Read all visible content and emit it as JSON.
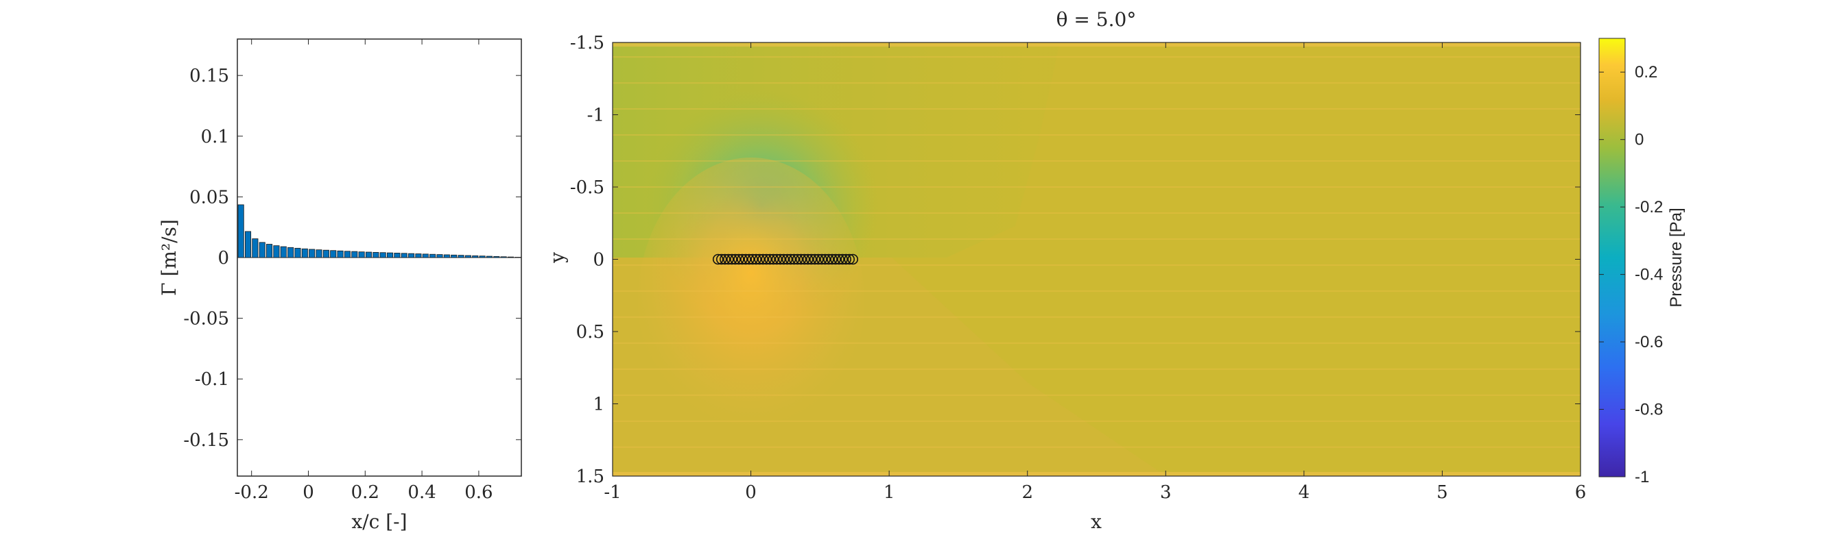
{
  "chart_data": [
    {
      "type": "bar",
      "xlabel": "x/c [-]",
      "ylabel": "Γ [m²/s]",
      "xlim": [
        -0.25,
        0.75
      ],
      "ylim": [
        -0.18,
        0.18
      ],
      "xticks": [
        "-0.2",
        "0",
        "0.2",
        "0.4",
        "0.6"
      ],
      "xtick_values": [
        -0.2,
        0,
        0.2,
        0.4,
        0.6
      ],
      "yticks": [
        "-0.15",
        "-0.1",
        "-0.05",
        "0",
        "0.05",
        "0.1",
        "0.15"
      ],
      "ytick_values": [
        -0.15,
        -0.1,
        -0.05,
        0,
        0.05,
        0.1,
        0.15
      ],
      "bar_color": "#0072BD",
      "x": [
        -0.2375,
        -0.2125,
        -0.1875,
        -0.1625,
        -0.1375,
        -0.1125,
        -0.0875,
        -0.0625,
        -0.0375,
        -0.0125,
        0.0125,
        0.0375,
        0.0625,
        0.0875,
        0.1125,
        0.1375,
        0.1625,
        0.1875,
        0.2125,
        0.2375,
        0.2625,
        0.2875,
        0.3125,
        0.3375,
        0.3625,
        0.3875,
        0.4125,
        0.4375,
        0.4625,
        0.4875,
        0.5125,
        0.5375,
        0.5625,
        0.5875,
        0.6125,
        0.6375,
        0.6625,
        0.6875,
        0.7125,
        0.7375
      ],
      "values": [
        0.0435,
        0.0215,
        0.0155,
        0.0125,
        0.011,
        0.0098,
        0.009,
        0.0083,
        0.0077,
        0.0072,
        0.0068,
        0.0064,
        0.0061,
        0.0058,
        0.0055,
        0.0052,
        0.005,
        0.0047,
        0.0045,
        0.0043,
        0.0041,
        0.0039,
        0.0037,
        0.0035,
        0.0033,
        0.0031,
        0.0029,
        0.0027,
        0.0025,
        0.0023,
        0.0021,
        0.0019,
        0.0017,
        0.0015,
        0.0013,
        0.0011,
        0.0009,
        0.0007,
        0.0005,
        0.0003
      ],
      "grid": false
    },
    {
      "type": "heatmap",
      "title": "θ = 5.0°",
      "xlabel": "x",
      "ylabel": "y",
      "xlim": [
        -1,
        6
      ],
      "ylim": [
        -1.5,
        1.5
      ],
      "y_reversed": true,
      "xticks": [
        "-1",
        "0",
        "1",
        "2",
        "3",
        "4",
        "5",
        "6"
      ],
      "xtick_values": [
        -1,
        0,
        1,
        2,
        3,
        4,
        5,
        6
      ],
      "yticks": [
        "-1.5",
        "-1",
        "-0.5",
        "0",
        "0.5",
        "1",
        "1.5"
      ],
      "ytick_values": [
        -1.5,
        -1,
        -0.5,
        0,
        0.5,
        1,
        1.5
      ],
      "colorbar": {
        "label": "Pressure [Pa]",
        "range": [
          -1,
          0.3
        ],
        "ticks": [
          "-1",
          "-0.8",
          "-0.6",
          "-0.4",
          "-0.2",
          "0",
          "0.2"
        ],
        "tick_values": [
          -1,
          -0.8,
          -0.6,
          -0.4,
          -0.2,
          0,
          0.2
        ],
        "colormap": "parula"
      },
      "background_pressure": 0.02,
      "suction_peak": {
        "x": -0.05,
        "y": -0.3,
        "value": -0.22
      },
      "pressure_peak": {
        "x": -0.05,
        "y": 0.35,
        "value": 0.12
      },
      "panel_markers_y": 0,
      "panel_markers_x": [
        -0.2375,
        -0.2125,
        -0.1875,
        -0.1625,
        -0.1375,
        -0.1125,
        -0.0875,
        -0.0625,
        -0.0375,
        -0.0125,
        0.0125,
        0.0375,
        0.0625,
        0.0875,
        0.1125,
        0.1375,
        0.1625,
        0.1875,
        0.2125,
        0.2375,
        0.2625,
        0.2875,
        0.3125,
        0.3375,
        0.3625,
        0.3875,
        0.4125,
        0.4375,
        0.4625,
        0.4875,
        0.5125,
        0.5375,
        0.5625,
        0.5875,
        0.6125,
        0.6375,
        0.6625,
        0.6875,
        0.7125,
        0.7375
      ]
    }
  ]
}
